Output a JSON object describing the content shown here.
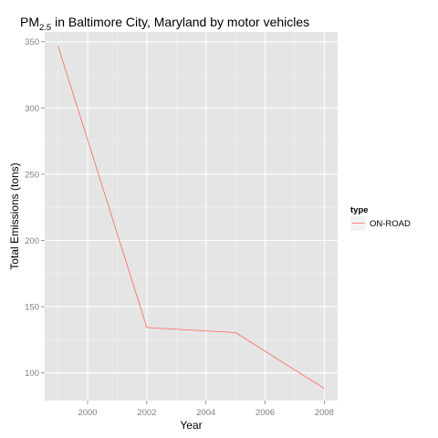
{
  "chart_data": {
    "type": "line",
    "title_main": "PM",
    "title_subscript": "2.5",
    "title_rest": " in Baltimore City, Maryland by motor vehicles",
    "xlabel": "Year",
    "ylabel": "Total Emissions (tons)",
    "xlim": [
      1998.55,
      2008.45
    ],
    "ylim": [
      79.1,
      357.4
    ],
    "x_ticks": [
      2000,
      2002,
      2004,
      2006,
      2008
    ],
    "y_ticks": [
      100,
      150,
      200,
      250,
      300,
      350
    ],
    "grid": true,
    "legend_position": "right",
    "legend_title": "type",
    "series": [
      {
        "name": "ON-ROAD",
        "color": "#F8766D",
        "x": [
          1999,
          2002,
          2005,
          2008
        ],
        "y": [
          346.82,
          134.31,
          130.43,
          88.28
        ]
      }
    ]
  }
}
